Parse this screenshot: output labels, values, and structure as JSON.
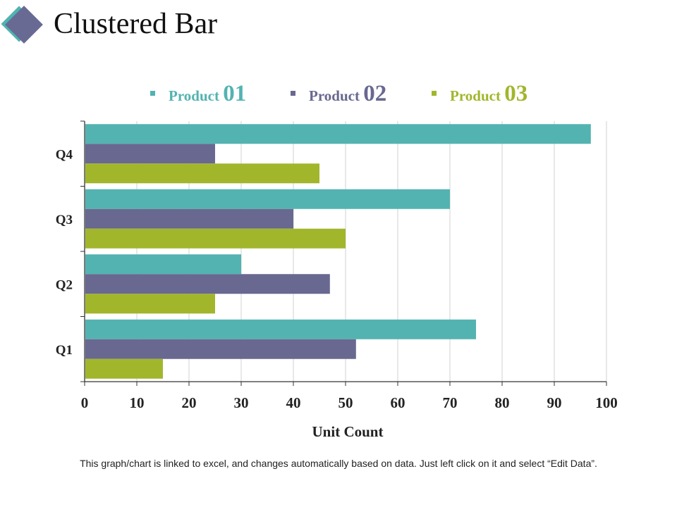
{
  "header": {
    "title": "Clustered Bar",
    "logo_icon": "diamond-icon"
  },
  "colors": {
    "product01": "#53b3b1",
    "product02": "#686890",
    "product03": "#a2b62c",
    "axis": "#333333",
    "grid": "#d0d0d0"
  },
  "chart_data": {
    "type": "bar",
    "orientation": "horizontal",
    "title": "Clustered Bar",
    "xlabel": "Unit Count",
    "ylabel": "",
    "xlim": [
      0,
      100
    ],
    "xticks": [
      0,
      10,
      20,
      30,
      40,
      50,
      60,
      70,
      80,
      90,
      100
    ],
    "grid": true,
    "legend_position": "top",
    "categories": [
      "Q1",
      "Q2",
      "Q3",
      "Q4"
    ],
    "series": [
      {
        "name": "Product 01",
        "label_text": "Product",
        "label_num": "01",
        "color": "#53b3b1",
        "values": [
          75,
          30,
          70,
          97
        ]
      },
      {
        "name": "Product 02",
        "label_text": "Product",
        "label_num": "02",
        "color": "#686890",
        "values": [
          52,
          47,
          40,
          25
        ]
      },
      {
        "name": "Product 03",
        "label_text": "Product",
        "label_num": "03",
        "color": "#a2b62c",
        "values": [
          15,
          25,
          50,
          45
        ]
      }
    ]
  },
  "footer": {
    "note": "This graph/chart is linked to excel, and changes automatically based on data. Just left click on it and select “Edit Data”."
  }
}
